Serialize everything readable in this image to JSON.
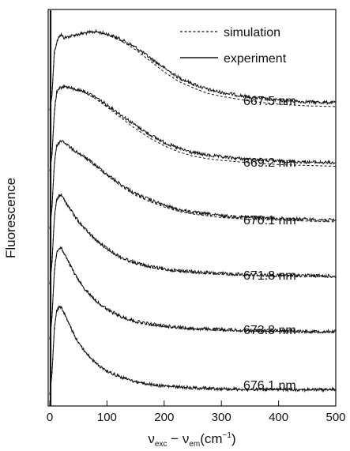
{
  "chart_data": {
    "type": "line",
    "title": "",
    "xlabel": {
      "nu": "ν",
      "sub_exc": "exc",
      "minus": " − ",
      "sub_em": "em",
      "unit": "(cm",
      "unit_exp": "−1",
      "unit_close": ")"
    },
    "ylabel": "Fluorescence",
    "xlim": [
      0,
      500
    ],
    "xticks": [
      0,
      100,
      200,
      300,
      400,
      500
    ],
    "y_scale": "arbitrary, traces vertically offset",
    "legend": {
      "placement": "top-right",
      "entries": [
        {
          "label": "simulation",
          "style": "dashed"
        },
        {
          "label": "experiment",
          "style": "solid"
        }
      ]
    },
    "series": [
      {
        "name": "667.5 nm",
        "label": "667.5 nm",
        "peak_x": 80,
        "sim_offset": -0.05,
        "x": [
          0,
          4,
          8,
          15,
          20,
          25,
          40,
          60,
          80,
          100,
          125,
          150,
          175,
          200,
          225,
          250,
          275,
          300,
          350,
          400,
          450,
          500
        ],
        "y": [
          0.0,
          0.2,
          0.75,
          0.93,
          0.96,
          0.92,
          0.95,
          0.98,
          1.0,
          0.97,
          0.9,
          0.8,
          0.67,
          0.54,
          0.42,
          0.34,
          0.27,
          0.23,
          0.17,
          0.13,
          0.11,
          0.1
        ]
      },
      {
        "name": "669.2 nm",
        "label": "669.2 nm",
        "peak_x": 25,
        "sim_offset": -0.04,
        "x": [
          0,
          4,
          8,
          12,
          18,
          25,
          40,
          60,
          80,
          100,
          125,
          150,
          175,
          200,
          225,
          250,
          275,
          300,
          350,
          400,
          450,
          500
        ],
        "y": [
          0.0,
          0.2,
          0.7,
          0.92,
          0.98,
          1.0,
          0.97,
          0.94,
          0.87,
          0.78,
          0.66,
          0.54,
          0.43,
          0.34,
          0.27,
          0.22,
          0.19,
          0.17,
          0.14,
          0.12,
          0.11,
          0.1
        ]
      },
      {
        "name": "670.1 nm",
        "label": "670.1 nm",
        "peak_x": 22,
        "sim_offset": -0.02,
        "x": [
          0,
          4,
          8,
          12,
          18,
          22,
          40,
          60,
          80,
          100,
          125,
          150,
          175,
          200,
          225,
          250,
          275,
          300,
          350,
          400,
          450,
          500
        ],
        "y": [
          0.0,
          0.25,
          0.75,
          0.94,
          0.99,
          1.0,
          0.9,
          0.82,
          0.72,
          0.62,
          0.5,
          0.4,
          0.33,
          0.27,
          0.22,
          0.19,
          0.17,
          0.15,
          0.13,
          0.12,
          0.11,
          0.1
        ]
      },
      {
        "name": "671.8 nm",
        "label": "671.8 nm",
        "peak_x": 20,
        "sim_offset": -0.01,
        "x": [
          0,
          4,
          8,
          12,
          16,
          20,
          30,
          45,
          60,
          80,
          100,
          125,
          150,
          175,
          200,
          250,
          300,
          350,
          400,
          450,
          500
        ],
        "y": [
          0.0,
          0.25,
          0.75,
          0.95,
          0.99,
          1.0,
          0.9,
          0.75,
          0.63,
          0.5,
          0.4,
          0.3,
          0.24,
          0.2,
          0.17,
          0.14,
          0.12,
          0.11,
          0.1,
          0.1,
          0.09
        ]
      },
      {
        "name": "673.8 nm",
        "label": "673.8 nm",
        "peak_x": 20,
        "sim_offset": -0.01,
        "x": [
          0,
          4,
          8,
          12,
          16,
          20,
          30,
          45,
          60,
          80,
          100,
          125,
          150,
          175,
          200,
          250,
          300,
          350,
          400,
          450,
          500
        ],
        "y": [
          0.0,
          0.25,
          0.75,
          0.95,
          0.99,
          1.0,
          0.88,
          0.7,
          0.56,
          0.43,
          0.33,
          0.25,
          0.2,
          0.17,
          0.15,
          0.12,
          0.11,
          0.1,
          0.1,
          0.09,
          0.09
        ]
      },
      {
        "name": "676.1 nm",
        "label": "676.1 nm",
        "peak_x": 20,
        "sim_offset": 0.0,
        "x": [
          0,
          4,
          8,
          12,
          16,
          20,
          30,
          45,
          60,
          80,
          100,
          125,
          150,
          175,
          200,
          250,
          300,
          350,
          400,
          450,
          500
        ],
        "y": [
          0.0,
          0.25,
          0.75,
          0.95,
          0.99,
          1.0,
          0.85,
          0.65,
          0.5,
          0.36,
          0.27,
          0.2,
          0.15,
          0.12,
          0.1,
          0.08,
          0.07,
          0.06,
          0.06,
          0.06,
          0.06
        ]
      }
    ]
  },
  "colors": {
    "line": "#111111",
    "background": "#ffffff"
  }
}
